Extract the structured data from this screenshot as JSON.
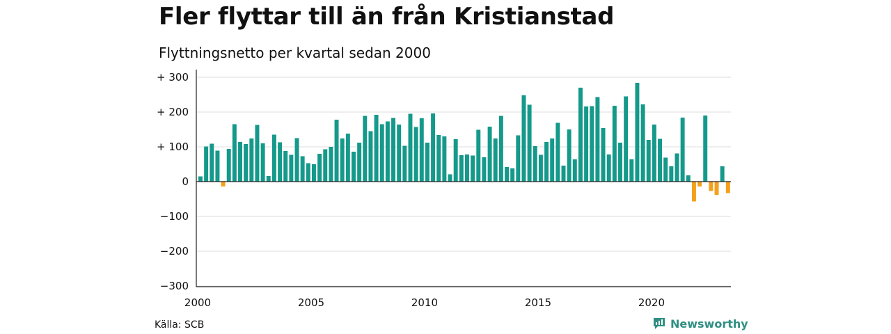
{
  "title": "Fler flyttar till än från Kristianstad",
  "subtitle": "Flyttningsnetto per kvartal sedan 2000",
  "source": "Källa: SCB",
  "brand": "Newsworthy",
  "colors": {
    "positive": "#14998a",
    "negative": "#f5a01a",
    "grid": "#dddddd",
    "brand": "#2f8f83"
  },
  "chart_data": {
    "type": "bar",
    "title": "Fler flyttar till än från Kristianstad",
    "subtitle": "Flyttningsnetto per kvartal sedan 2000",
    "xlabel": "",
    "ylabel": "",
    "ylim": [
      -300,
      300
    ],
    "yticks": [
      300,
      200,
      100,
      0,
      -100,
      -200,
      -300
    ],
    "ytick_labels": [
      "+ 300",
      "+ 200",
      "+ 100",
      "0",
      "−100",
      "−200",
      "−300"
    ],
    "xticks": [
      2000,
      2005,
      2010,
      2015,
      2020
    ],
    "xtick_labels": [
      "2000",
      "2005",
      "2010",
      "2015",
      "2020"
    ],
    "grid": true,
    "start_year": 2000,
    "values": [
      15,
      101,
      109,
      89,
      -14,
      94,
      165,
      114,
      108,
      124,
      163,
      110,
      16,
      135,
      113,
      88,
      77,
      125,
      73,
      53,
      50,
      80,
      93,
      100,
      178,
      124,
      138,
      86,
      112,
      189,
      145,
      192,
      165,
      173,
      183,
      164,
      103,
      195,
      157,
      182,
      112,
      196,
      134,
      130,
      21,
      122,
      76,
      78,
      75,
      149,
      70,
      158,
      124,
      189,
      42,
      38,
      133,
      248,
      221,
      102,
      77,
      114,
      124,
      169,
      46,
      150,
      64,
      270,
      216,
      217,
      243,
      154,
      78,
      218,
      112,
      245,
      64,
      284,
      222,
      120,
      164,
      123,
      69,
      44,
      81,
      184,
      18,
      -57,
      -14,
      190,
      -27,
      -38,
      44,
      -33
    ]
  }
}
